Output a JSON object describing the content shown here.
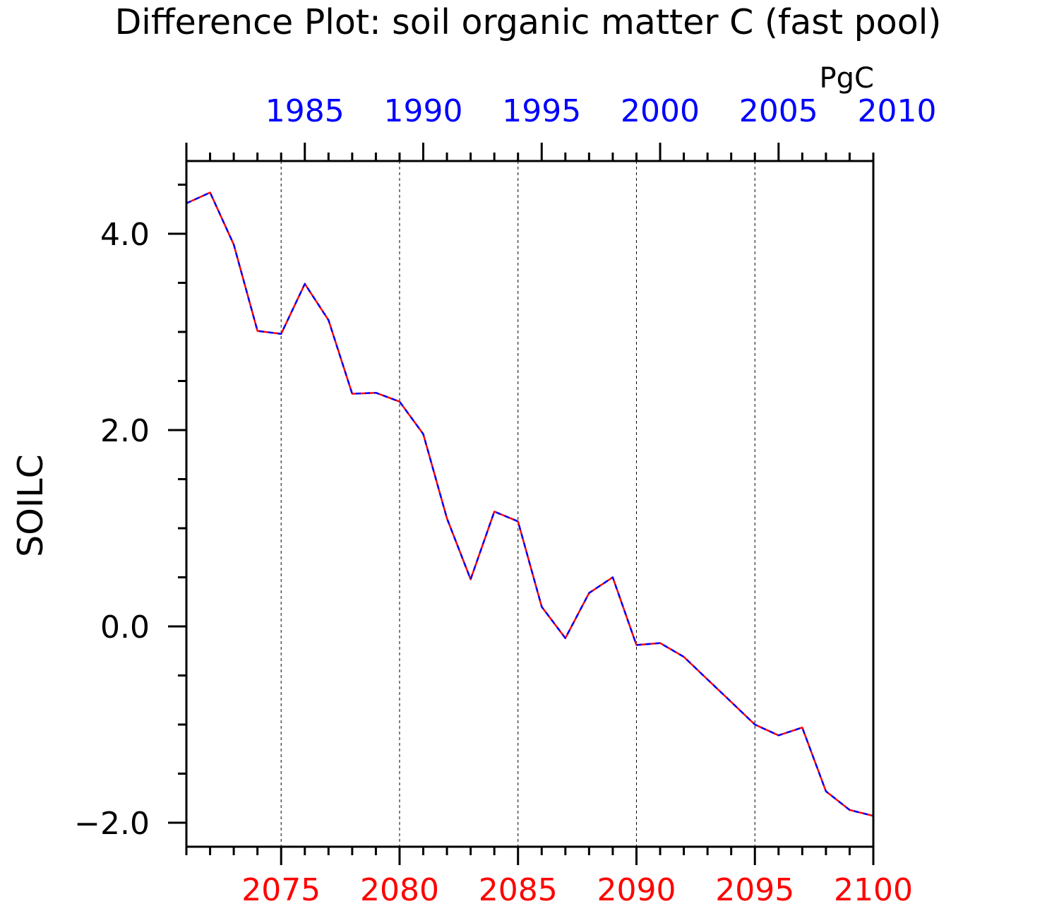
{
  "chart_data": {
    "type": "line",
    "title": "Difference Plot: soil organic matter C (fast pool)",
    "units": "PgC",
    "ylabel": "SOILC",
    "xlabel": "",
    "ylim": [
      -2.5,
      4.5
    ],
    "y_ticks": [
      "4.0",
      "2.0",
      "0.0",
      "−2.0"
    ],
    "y_tick_values": [
      4,
      2,
      0,
      -2
    ],
    "grid": "vertical dashed lines at labelled years",
    "x_bottom": {
      "range": [
        2071,
        2100
      ],
      "tick_labels": [
        "2075",
        "2080",
        "2085",
        "2090",
        "2095",
        "2100"
      ],
      "color": "#ff0000"
    },
    "x_top": {
      "range": [
        1980,
        2009
      ],
      "tick_labels": [
        "1985",
        "1990",
        "1995",
        "2000",
        "2005",
        "2010"
      ],
      "color": "#0000ff"
    },
    "x": [
      2071,
      2072,
      2073,
      2074,
      2075,
      2076,
      2077,
      2078,
      2079,
      2080,
      2081,
      2082,
      2083,
      2084,
      2085,
      2086,
      2087,
      2088,
      2089,
      2090,
      2091,
      2092,
      2093,
      2094,
      2095,
      2096,
      2097,
      2098,
      2099,
      2100
    ],
    "series": [
      {
        "style": "solid",
        "color": "#ff0000",
        "values": [
          4.31,
          4.42,
          3.89,
          3.01,
          2.98,
          3.49,
          3.12,
          2.37,
          2.38,
          2.29,
          1.96,
          1.1,
          0.48,
          1.17,
          1.07,
          0.2,
          -0.12,
          0.34,
          0.5,
          -0.19,
          -0.17,
          -0.31,
          -0.54,
          -0.77,
          -1.0,
          -1.11,
          -1.03,
          -1.68,
          -1.87,
          -1.93
        ]
      },
      {
        "style": "dashed",
        "color": "#0000ff",
        "values": [
          4.31,
          4.42,
          3.89,
          3.01,
          2.98,
          3.49,
          3.12,
          2.37,
          2.38,
          2.29,
          1.96,
          1.1,
          0.48,
          1.17,
          1.07,
          0.2,
          -0.12,
          0.34,
          0.5,
          -0.19,
          -0.17,
          -0.31,
          -0.54,
          -0.77,
          -1.0,
          -1.11,
          -1.03,
          -1.68,
          -1.87,
          -1.93
        ]
      }
    ]
  }
}
